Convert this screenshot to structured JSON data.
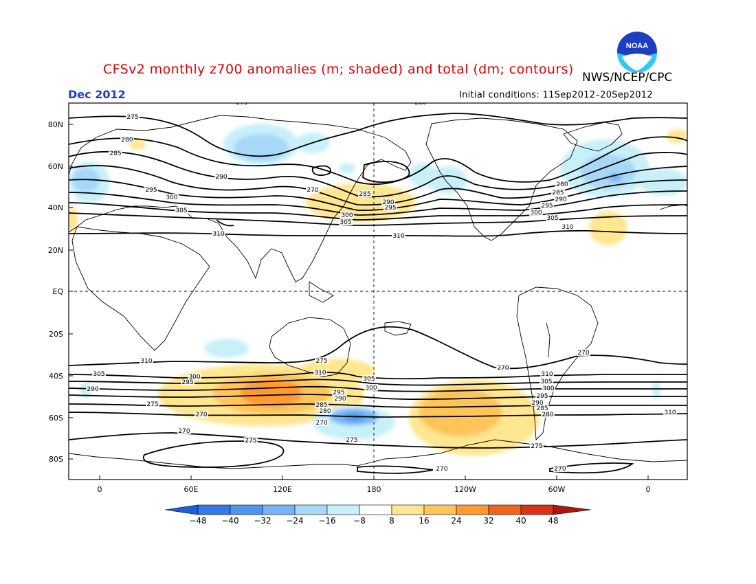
{
  "header": {
    "title": "CFSv2 monthly z700 anomalies (m; shaded) and total (dm; contours)",
    "agency": "NWS/NCEP/CPC",
    "month": "Dec 2012",
    "initial_conditions": "Initial conditions: 11Sep2012–20Sep2012",
    "logo_text": "NOAA"
  },
  "map": {
    "lat_labels": [
      "80N",
      "60N",
      "40N",
      "20N",
      "EQ",
      "20S",
      "40S",
      "60S",
      "80S"
    ],
    "lon_labels": [
      "0",
      "60E",
      "120E",
      "180",
      "120W",
      "60W",
      "0"
    ],
    "contour_labels": [
      {
        "t": "275"
      },
      {
        "t": "280"
      },
      {
        "t": "285"
      },
      {
        "t": "290"
      },
      {
        "t": "295"
      },
      {
        "t": "300"
      },
      {
        "t": "305"
      },
      {
        "t": "310"
      },
      {
        "t": "275"
      },
      {
        "t": "280"
      },
      {
        "t": "285"
      },
      {
        "t": "290"
      },
      {
        "t": "295"
      },
      {
        "t": "300"
      },
      {
        "t": "305"
      },
      {
        "t": "310"
      },
      {
        "t": "280"
      },
      {
        "t": "285"
      },
      {
        "t": "290"
      },
      {
        "t": "295"
      },
      {
        "t": "300"
      },
      {
        "t": "305"
      },
      {
        "t": "310"
      },
      {
        "t": "270"
      },
      {
        "t": "275"
      },
      {
        "t": "310"
      },
      {
        "t": "305"
      },
      {
        "t": "300"
      },
      {
        "t": "295"
      },
      {
        "t": "290"
      },
      {
        "t": "275"
      },
      {
        "t": "270"
      },
      {
        "t": "270"
      },
      {
        "t": "275"
      },
      {
        "t": "310"
      },
      {
        "t": "305"
      },
      {
        "t": "300"
      },
      {
        "t": "295"
      },
      {
        "t": "290"
      },
      {
        "t": "285"
      },
      {
        "t": "280"
      },
      {
        "t": "275"
      },
      {
        "t": "270"
      },
      {
        "t": "310"
      },
      {
        "t": "305"
      },
      {
        "t": "300"
      },
      {
        "t": "295"
      },
      {
        "t": "290"
      },
      {
        "t": "285"
      },
      {
        "t": "280"
      },
      {
        "t": "275"
      },
      {
        "t": "270"
      },
      {
        "t": "310"
      },
      {
        "t": "270"
      },
      {
        "t": "270"
      },
      {
        "t": "270"
      },
      {
        "t": "290"
      }
    ]
  },
  "colorbar": {
    "labels": [
      "-48",
      "-40",
      "-32",
      "-24",
      "-16",
      "-8",
      "8",
      "16",
      "24",
      "32",
      "40",
      "48"
    ],
    "colors": [
      "#1e5fd8",
      "#3278e6",
      "#5095ee",
      "#78b4f5",
      "#a8d8f8",
      "#c8f0f8",
      "#ffffff",
      "#ffe690",
      "#ffc45a",
      "#ff9a32",
      "#f0641e",
      "#d83218",
      "#a81810"
    ]
  }
}
